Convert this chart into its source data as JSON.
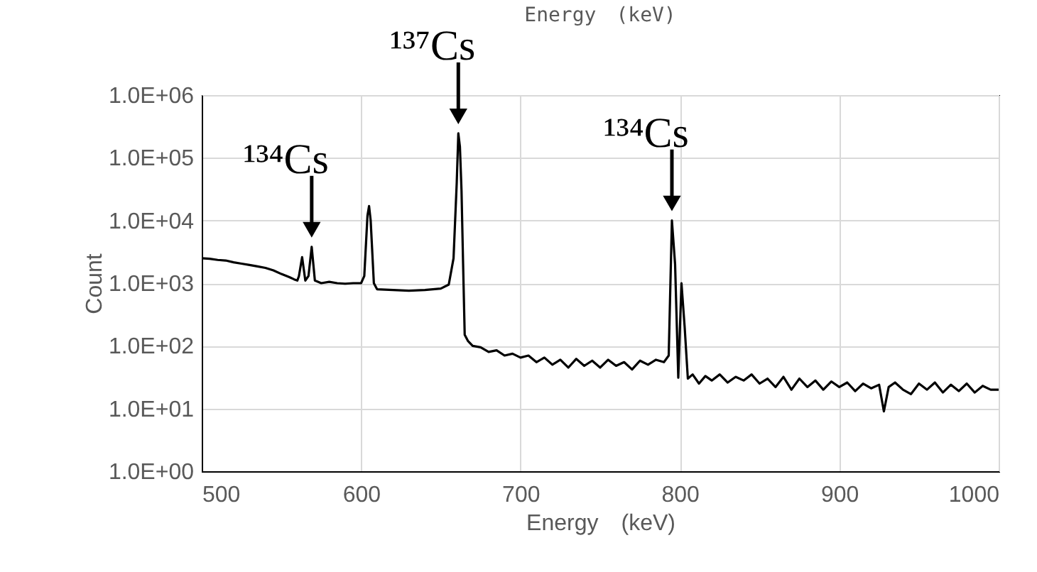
{
  "chart_data": {
    "type": "line",
    "title": "Energy　(keV)",
    "xlabel": "Energy　(keV)",
    "ylabel": "Count",
    "log": "y",
    "grid": true,
    "xlim": [
      500,
      1000
    ],
    "xticks": [
      500,
      600,
      700,
      800,
      900,
      1000
    ],
    "ylim": [
      1,
      1000000
    ],
    "yticks": [
      {
        "value": 1,
        "label": "1.0E+00"
      },
      {
        "value": 10,
        "label": "1.0E+01"
      },
      {
        "value": 100,
        "label": "1.0E+02"
      },
      {
        "value": 1000,
        "label": "1.0E+03"
      },
      {
        "value": 10000,
        "label": "1.0E+04"
      },
      {
        "value": 100000,
        "label": "1.0E+05"
      },
      {
        "value": 1000000,
        "label": "1.0E+06"
      }
    ],
    "annotations": [
      {
        "text": "¹³⁴Cs",
        "x": 569,
        "y": 3800
      },
      {
        "text": "¹³⁷Cs",
        "x": 661,
        "y": 245000
      },
      {
        "text": "¹³⁴Cs",
        "x": 795,
        "y": 10000
      }
    ],
    "x": [
      500,
      505,
      510,
      515,
      520,
      525,
      530,
      535,
      540,
      545,
      550,
      555,
      558,
      560,
      561,
      563,
      565,
      567,
      569,
      571,
      575,
      580,
      585,
      590,
      595,
      600,
      602,
      604,
      605,
      606,
      608,
      610,
      620,
      630,
      640,
      650,
      655,
      658,
      660,
      661,
      662,
      663,
      664,
      665,
      667,
      670,
      675,
      680,
      685,
      690,
      695,
      700,
      705,
      710,
      715,
      720,
      725,
      730,
      735,
      740,
      745,
      750,
      755,
      760,
      765,
      770,
      775,
      780,
      785,
      790,
      793,
      795,
      797,
      799,
      801,
      803,
      805,
      808,
      812,
      816,
      820,
      825,
      830,
      835,
      840,
      845,
      850,
      855,
      860,
      865,
      870,
      875,
      880,
      885,
      890,
      895,
      900,
      905,
      910,
      915,
      920,
      925,
      928,
      931,
      935,
      940,
      945,
      950,
      955,
      960,
      965,
      970,
      975,
      980,
      985,
      990,
      995,
      1000
    ],
    "series": [
      {
        "color": "#000000",
        "values": [
          2500,
          2450,
          2350,
          2300,
          2150,
          2050,
          1950,
          1850,
          1750,
          1600,
          1400,
          1250,
          1150,
          1100,
          1300,
          2600,
          1100,
          1300,
          3800,
          1100,
          1000,
          1050,
          1000,
          980,
          1000,
          1000,
          1300,
          12000,
          17000,
          10000,
          1000,
          800,
          780,
          760,
          780,
          820,
          950,
          2500,
          40000,
          245000,
          150000,
          30000,
          2000,
          150,
          120,
          100,
          95,
          80,
          85,
          70,
          75,
          65,
          70,
          55,
          65,
          50,
          60,
          45,
          62,
          48,
          58,
          45,
          60,
          48,
          55,
          42,
          58,
          50,
          60,
          55,
          70,
          10000,
          2000,
          31,
          1000,
          200,
          30,
          35,
          25,
          33,
          28,
          35,
          26,
          32,
          28,
          35,
          25,
          30,
          22,
          32,
          20,
          30,
          22,
          28,
          20,
          27,
          22,
          26,
          19,
          25,
          21,
          24,
          9,
          22,
          26,
          20,
          17,
          25,
          20,
          26,
          18,
          24,
          19,
          25,
          18,
          23,
          20,
          20
        ]
      }
    ]
  }
}
